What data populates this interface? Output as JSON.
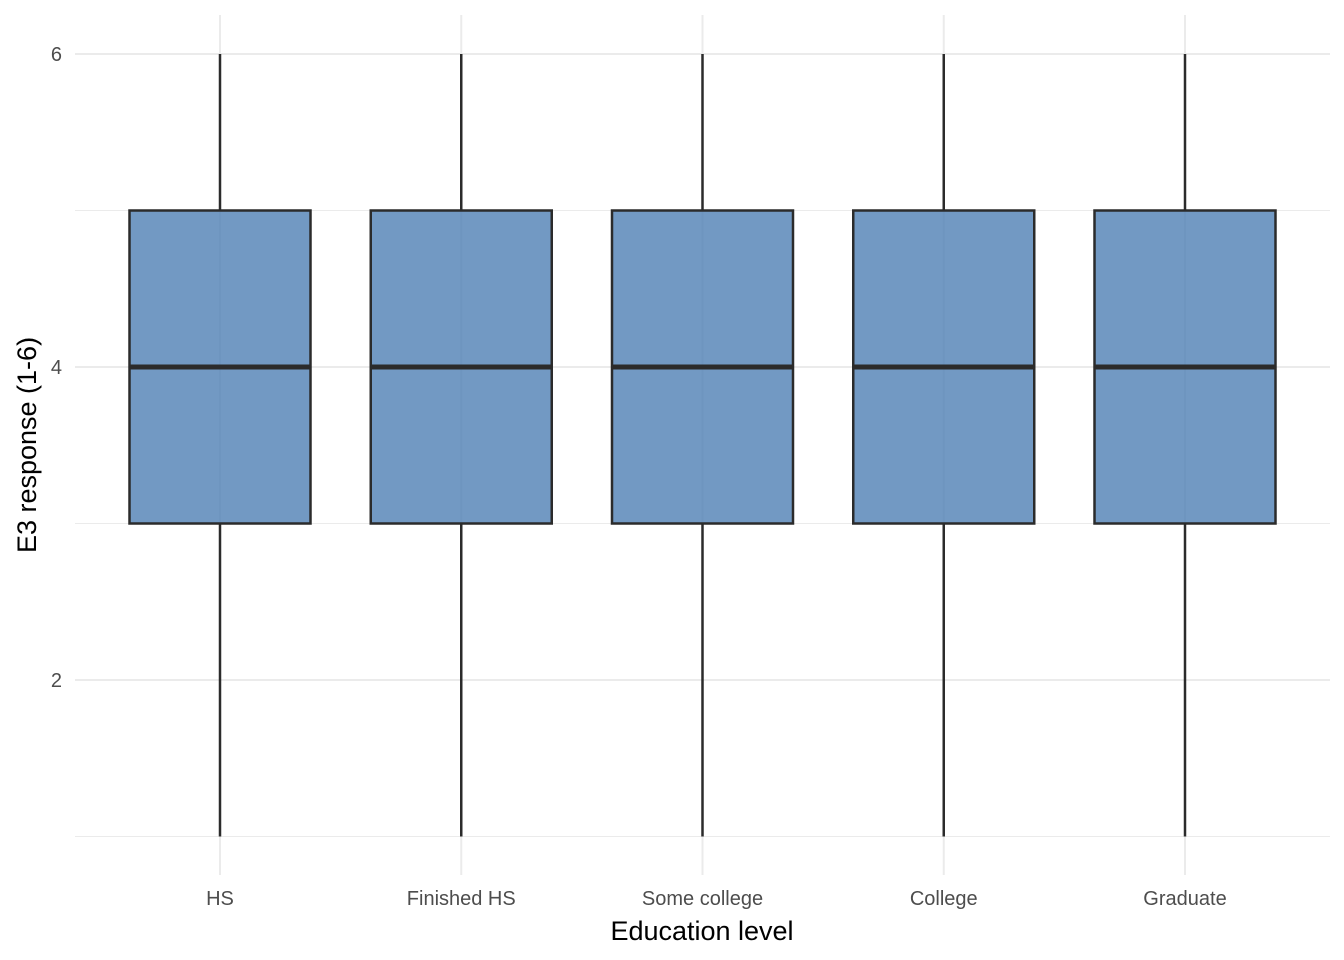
{
  "chart_data": {
    "type": "boxplot",
    "title": "",
    "xlabel": "Education level",
    "ylabel": "E3 response (1-6)",
    "categories": [
      "HS",
      "Finished HS",
      "Some college",
      "College",
      "Graduate"
    ],
    "boxes": [
      {
        "category": "HS",
        "min": 1,
        "q1": 3,
        "median": 4,
        "q3": 5,
        "max": 6
      },
      {
        "category": "Finished HS",
        "min": 1,
        "q1": 3,
        "median": 4,
        "q3": 5,
        "max": 6
      },
      {
        "category": "Some college",
        "min": 1,
        "q1": 3,
        "median": 4,
        "q3": 5,
        "max": 6
      },
      {
        "category": "College",
        "min": 1,
        "q1": 3,
        "median": 4,
        "q3": 5,
        "max": 6
      },
      {
        "category": "Graduate",
        "min": 1,
        "q1": 3,
        "median": 4,
        "q3": 5,
        "max": 6
      }
    ],
    "yticks": [
      "2",
      "4",
      "6"
    ],
    "ylim": [
      0.75,
      6.25
    ],
    "grid": true,
    "box_fill": "#4f7fb4",
    "box_stroke": "#2b2b2b",
    "grid_color": "#ebebeb"
  }
}
